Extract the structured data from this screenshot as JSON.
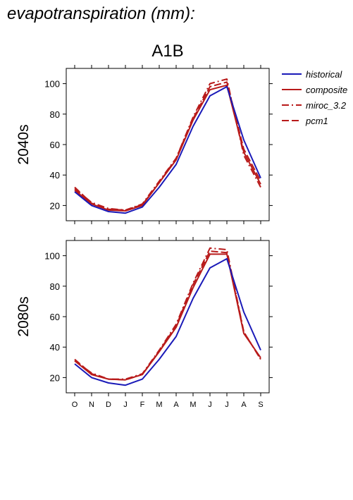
{
  "page": {
    "title": "evapotranspiration (mm):",
    "scenario": "A1B"
  },
  "chart_data": {
    "type": "line",
    "x": [
      "O",
      "N",
      "D",
      "J",
      "F",
      "M",
      "A",
      "M",
      "J",
      "J",
      "A",
      "S"
    ],
    "ylim": [
      10,
      110
    ],
    "yticks": [
      20,
      40,
      60,
      80,
      100
    ],
    "grid": false,
    "legend_position": "top-right",
    "legend": [
      {
        "name": "historical",
        "color": "#1a1ab8",
        "dash": "solid"
      },
      {
        "name": "composite",
        "color": "#b81a1a",
        "dash": "solid"
      },
      {
        "name": "miroc_3.2",
        "color": "#b81a1a",
        "dash": "dashdot"
      },
      {
        "name": "pcm1",
        "color": "#b81a1a",
        "dash": "dashed"
      }
    ],
    "panels": [
      {
        "label": "2040s",
        "series": [
          {
            "name": "historical",
            "values": [
              29,
              20,
              16,
              15,
              19,
              32,
              47,
              72,
              92,
              98,
              63,
              38
            ]
          },
          {
            "name": "composite",
            "values": [
              30,
              21,
              17,
              16.5,
              20,
              35,
              50,
              76,
              96,
              99,
              55,
              34
            ]
          },
          {
            "name": "miroc_3.2",
            "values": [
              31,
              22,
              18,
              17,
              21,
              36,
              51,
              78,
              100,
              103,
              53,
              32
            ]
          },
          {
            "name": "pcm1",
            "values": [
              32,
              21.5,
              17.5,
              17,
              20.5,
              35,
              51,
              77,
              98,
              101,
              57,
              36
            ]
          }
        ]
      },
      {
        "label": "2080s",
        "series": [
          {
            "name": "historical",
            "values": [
              29,
              20,
              16.5,
              15,
              19,
              32,
              47,
              72,
              92,
              98,
              63,
              38
            ]
          },
          {
            "name": "composite",
            "values": [
              31,
              22,
              19,
              18.5,
              22,
              37,
              53,
              79,
              101,
              101,
              49,
              33
            ]
          },
          {
            "name": "miroc_3.2",
            "values": [
              31,
              23,
              19,
              19,
              22.5,
              38,
              55,
              82,
              105,
              104,
              50,
              32
            ]
          },
          {
            "name": "pcm1",
            "values": [
              32,
              22.5,
              19,
              18.5,
              22,
              37.5,
              54,
              81,
              103,
              102,
              50,
              32
            ]
          }
        ]
      }
    ]
  }
}
